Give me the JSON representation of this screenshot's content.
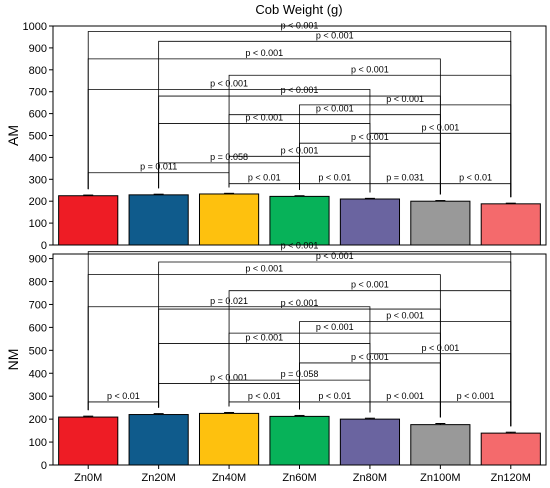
{
  "title": "Cob Weight (g)",
  "chart_data": [
    {
      "type": "bar",
      "panel": "AM",
      "title": "Cob Weight (g)",
      "ylabel": "AM",
      "xlabel": "",
      "ylim": [
        0,
        1000
      ],
      "yticks": [
        0,
        100,
        200,
        300,
        400,
        500,
        600,
        700,
        800,
        900,
        1000
      ],
      "categories": [
        "Zn0M",
        "Zn20M",
        "Zn40M",
        "Zn60M",
        "Zn80M",
        "Zn100M",
        "Zn120M"
      ],
      "values": [
        225,
        229,
        233,
        222,
        210,
        200,
        188
      ],
      "errors": [
        3,
        3,
        3,
        3,
        3,
        3,
        3
      ],
      "colors": [
        "#ee1c25",
        "#0f5b8c",
        "#fec10e",
        "#07b259",
        "#6a64a0",
        "#999999",
        "#f46a6c"
      ],
      "grid": false,
      "comparisons": [
        {
          "a": 0,
          "b": 6,
          "p": "p < 0.001",
          "level": 975
        },
        {
          "a": 1,
          "b": 6,
          "p": "p < 0.001",
          "level": 930
        },
        {
          "a": 0,
          "b": 5,
          "p": "p < 0.001",
          "level": 850
        },
        {
          "a": 2,
          "b": 6,
          "p": "p < 0.001",
          "level": 775
        },
        {
          "a": 0,
          "b": 4,
          "p": "p < 0.001",
          "level": 710
        },
        {
          "a": 1,
          "b": 5,
          "p": "p < 0.001",
          "level": 680
        },
        {
          "a": 3,
          "b": 6,
          "p": "p < 0.001",
          "level": 640
        },
        {
          "a": 2,
          "b": 5,
          "p": "p < 0.001",
          "level": 595
        },
        {
          "a": 1,
          "b": 4,
          "p": "p < 0.001",
          "level": 555
        },
        {
          "a": 4,
          "b": 6,
          "p": "p < 0.001",
          "level": 510
        },
        {
          "a": 3,
          "b": 5,
          "p": "p < 0.001",
          "level": 465
        },
        {
          "a": 2,
          "b": 4,
          "p": "p < 0.001",
          "level": 405
        },
        {
          "a": 1,
          "b": 3,
          "p": "p = 0.058",
          "level": 375
        },
        {
          "a": 0,
          "b": 2,
          "p": "p = 0.011",
          "level": 330
        },
        {
          "a": 2,
          "b": 3,
          "p": "p < 0.01",
          "level": 280
        },
        {
          "a": 3,
          "b": 4,
          "p": "p < 0.01",
          "level": 280
        },
        {
          "a": 4,
          "b": 5,
          "p": "p = 0.031",
          "level": 280
        },
        {
          "a": 5,
          "b": 6,
          "p": "p < 0.01",
          "level": 280
        }
      ]
    },
    {
      "type": "bar",
      "panel": "NM",
      "title": "",
      "ylabel": "NM",
      "xlabel": "",
      "ylim": [
        0,
        920
      ],
      "yticks": [
        0,
        100,
        200,
        300,
        400,
        500,
        600,
        700,
        800,
        900
      ],
      "categories": [
        "Zn0M",
        "Zn20M",
        "Zn40M",
        "Zn60M",
        "Zn80M",
        "Zn100M",
        "Zn120M"
      ],
      "values": [
        209,
        220,
        225,
        212,
        200,
        176,
        139
      ],
      "errors": [
        4,
        4,
        4,
        4,
        4,
        5,
        4
      ],
      "colors": [
        "#ee1c25",
        "#0f5b8c",
        "#fec10e",
        "#07b259",
        "#6a64a0",
        "#999999",
        "#f46a6c"
      ],
      "grid": false,
      "comparisons": [
        {
          "a": 0,
          "b": 6,
          "p": "p < 0.001",
          "level": 930
        },
        {
          "a": 1,
          "b": 6,
          "p": "p < 0.001",
          "level": 885
        },
        {
          "a": 0,
          "b": 5,
          "p": "p < 0.001",
          "level": 830
        },
        {
          "a": 2,
          "b": 6,
          "p": "p < 0.001",
          "level": 760
        },
        {
          "a": 0,
          "b": 4,
          "p": "p = 0.021",
          "level": 690
        },
        {
          "a": 1,
          "b": 5,
          "p": "p < 0.001",
          "level": 680
        },
        {
          "a": 3,
          "b": 6,
          "p": "p < 0.001",
          "level": 625
        },
        {
          "a": 2,
          "b": 5,
          "p": "p < 0.001",
          "level": 575
        },
        {
          "a": 1,
          "b": 4,
          "p": "p < 0.001",
          "level": 530
        },
        {
          "a": 4,
          "b": 6,
          "p": "p < 0.001",
          "level": 485
        },
        {
          "a": 3,
          "b": 5,
          "p": "p < 0.001",
          "level": 445
        },
        {
          "a": 1,
          "b": 3,
          "p": "p < 0.001",
          "level": 355
        },
        {
          "a": 2,
          "b": 4,
          "p": "p = 0.058",
          "level": 370
        },
        {
          "a": 0,
          "b": 1,
          "p": "p < 0.01",
          "level": 275
        },
        {
          "a": 2,
          "b": 3,
          "p": "p < 0.01",
          "level": 275
        },
        {
          "a": 3,
          "b": 4,
          "p": "p < 0.01",
          "level": 275
        },
        {
          "a": 4,
          "b": 5,
          "p": "p < 0.001",
          "level": 275
        },
        {
          "a": 5,
          "b": 6,
          "p": "p < 0.001",
          "level": 275
        }
      ]
    }
  ]
}
